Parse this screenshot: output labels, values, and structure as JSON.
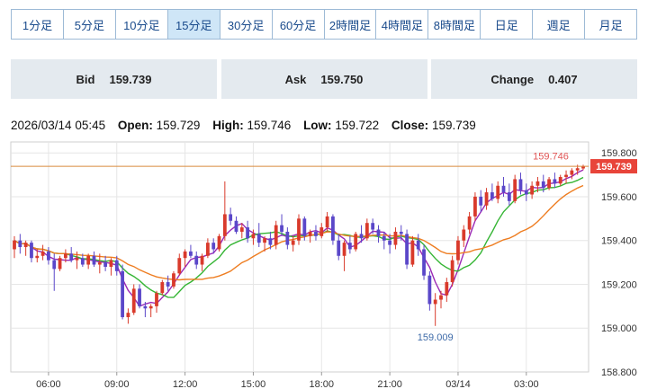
{
  "timeframe_tabs": [
    {
      "label": "1分足"
    },
    {
      "label": "5分足"
    },
    {
      "label": "10分足"
    },
    {
      "label": "15分足",
      "active": true
    },
    {
      "label": "30分足"
    },
    {
      "label": "60分足"
    },
    {
      "label": "2時間足"
    },
    {
      "label": "4時間足"
    },
    {
      "label": "8時間足"
    },
    {
      "label": "日足"
    },
    {
      "label": "週足"
    },
    {
      "label": "月足"
    }
  ],
  "quotes": {
    "bid_label": "Bid",
    "bid_value": "159.739",
    "ask_label": "Ask",
    "ask_value": "159.750",
    "change_label": "Change",
    "change_value": "0.407"
  },
  "ohlc": {
    "datetime": "2026/03/14 05:45",
    "open_label": "Open:",
    "open": "159.729",
    "high_label": "High:",
    "high": "159.746",
    "low_label": "Low:",
    "low": "159.722",
    "close_label": "Close:",
    "close": "159.739"
  },
  "colors": {
    "up": "#d93a2b",
    "down": "#5a47c9",
    "ma_short": "#9b29b5",
    "ma_mid": "#35b534",
    "ma_long": "#ee7d21",
    "last_price_line": "#d98a3c",
    "last_price_tag": "#e8443a",
    "high_annotation": "#e05555",
    "low_annotation": "#3d6aa8",
    "grid": "#e6e6e6",
    "axis_text": "#333333"
  },
  "chart_data": {
    "type": "candlestick",
    "y_range": [
      158.8,
      159.85
    ],
    "y_ticks": [
      "159.800",
      "159.600",
      "159.400",
      "159.200",
      "159.000",
      "158.800"
    ],
    "x_ticks": [
      "06:00",
      "09:00",
      "12:00",
      "15:00",
      "18:00",
      "21:00",
      "03/14",
      "03:00"
    ],
    "last_price": "159.739",
    "max_annotation": "159.746",
    "min_annotation": "159.009",
    "series": [
      {
        "name": "candles",
        "points": []
      }
    ],
    "ohlc": [
      [
        159.36,
        159.42,
        159.32,
        159.4
      ],
      [
        159.4,
        159.43,
        159.34,
        159.37
      ],
      [
        159.37,
        159.4,
        159.33,
        159.39
      ],
      [
        159.39,
        159.4,
        159.3,
        159.32
      ],
      [
        159.32,
        159.36,
        159.3,
        159.33
      ],
      [
        159.33,
        159.38,
        159.31,
        159.35
      ],
      [
        159.35,
        159.37,
        159.29,
        159.31
      ],
      [
        159.31,
        159.34,
        159.17,
        159.27
      ],
      [
        159.27,
        159.33,
        159.26,
        159.32
      ],
      [
        159.32,
        159.36,
        159.3,
        159.34
      ],
      [
        159.34,
        159.37,
        159.3,
        159.31
      ],
      [
        159.31,
        159.35,
        159.27,
        159.32
      ],
      [
        159.32,
        159.34,
        159.28,
        159.29
      ],
      [
        159.29,
        159.34,
        159.27,
        159.33
      ],
      [
        159.33,
        159.35,
        159.28,
        159.29
      ],
      [
        159.29,
        159.34,
        159.25,
        159.3
      ],
      [
        159.3,
        159.33,
        159.26,
        159.28
      ],
      [
        159.28,
        159.32,
        159.24,
        159.31
      ],
      [
        159.31,
        159.33,
        159.24,
        159.26
      ],
      [
        159.26,
        159.29,
        159.04,
        159.05
      ],
      [
        159.05,
        159.09,
        159.02,
        159.07
      ],
      [
        159.07,
        159.2,
        159.06,
        159.18
      ],
      [
        159.18,
        159.2,
        159.09,
        159.1
      ],
      [
        159.1,
        159.12,
        159.05,
        159.09
      ],
      [
        159.09,
        159.11,
        159.05,
        159.1
      ],
      [
        159.1,
        159.17,
        159.07,
        159.16
      ],
      [
        159.16,
        159.22,
        159.15,
        159.21
      ],
      [
        159.21,
        159.24,
        159.17,
        159.19
      ],
      [
        159.19,
        159.26,
        159.18,
        159.25
      ],
      [
        159.25,
        159.34,
        159.24,
        159.32
      ],
      [
        159.32,
        159.36,
        159.28,
        159.35
      ],
      [
        159.35,
        159.38,
        159.32,
        159.33
      ],
      [
        159.33,
        159.35,
        159.27,
        159.29
      ],
      [
        159.29,
        159.34,
        159.26,
        159.33
      ],
      [
        159.33,
        159.41,
        159.32,
        159.39
      ],
      [
        159.39,
        159.41,
        159.34,
        159.36
      ],
      [
        159.36,
        159.43,
        159.35,
        159.42
      ],
      [
        159.42,
        159.67,
        159.4,
        159.52
      ],
      [
        159.52,
        159.55,
        159.47,
        159.49
      ],
      [
        159.49,
        159.51,
        159.43,
        159.44
      ],
      [
        159.44,
        159.48,
        159.41,
        159.46
      ],
      [
        159.46,
        159.49,
        159.39,
        159.41
      ],
      [
        159.41,
        159.45,
        159.38,
        159.43
      ],
      [
        159.43,
        159.48,
        159.37,
        159.39
      ],
      [
        159.39,
        159.42,
        159.35,
        159.41
      ],
      [
        159.41,
        159.44,
        159.36,
        159.38
      ],
      [
        159.38,
        159.49,
        159.36,
        159.47
      ],
      [
        159.47,
        159.52,
        159.42,
        159.44
      ],
      [
        159.44,
        159.46,
        159.36,
        159.38
      ],
      [
        159.38,
        159.42,
        159.35,
        159.4
      ],
      [
        159.4,
        159.52,
        159.38,
        159.5
      ],
      [
        159.5,
        159.51,
        159.4,
        159.42
      ],
      [
        159.42,
        159.45,
        159.39,
        159.44
      ],
      [
        159.44,
        159.47,
        159.4,
        159.42
      ],
      [
        159.42,
        159.48,
        159.41,
        159.46
      ],
      [
        159.46,
        159.53,
        159.44,
        159.51
      ],
      [
        159.51,
        159.52,
        159.38,
        159.4
      ],
      [
        159.4,
        159.43,
        159.31,
        159.33
      ],
      [
        159.33,
        159.4,
        159.26,
        159.39
      ],
      [
        159.39,
        159.42,
        159.34,
        159.36
      ],
      [
        159.36,
        159.44,
        159.35,
        159.43
      ],
      [
        159.43,
        159.47,
        159.39,
        159.41
      ],
      [
        159.41,
        159.5,
        159.4,
        159.48
      ],
      [
        159.48,
        159.5,
        159.43,
        159.45
      ],
      [
        159.45,
        159.47,
        159.39,
        159.42
      ],
      [
        159.42,
        159.44,
        159.36,
        159.4
      ],
      [
        159.4,
        159.43,
        159.34,
        159.38
      ],
      [
        159.38,
        159.46,
        159.36,
        159.44
      ],
      [
        159.44,
        159.47,
        159.4,
        159.43
      ],
      [
        159.43,
        159.45,
        159.27,
        159.29
      ],
      [
        159.29,
        159.42,
        159.28,
        159.4
      ],
      [
        159.4,
        159.43,
        159.33,
        159.36
      ],
      [
        159.36,
        159.38,
        159.22,
        159.24
      ],
      [
        159.24,
        159.26,
        159.08,
        159.11
      ],
      [
        159.11,
        159.16,
        159.01,
        159.13
      ],
      [
        159.13,
        159.17,
        159.09,
        159.15
      ],
      [
        159.15,
        159.23,
        159.12,
        159.21
      ],
      [
        159.21,
        159.33,
        159.19,
        159.31
      ],
      [
        159.31,
        159.42,
        159.29,
        159.4
      ],
      [
        159.4,
        159.47,
        159.37,
        159.45
      ],
      [
        159.45,
        159.53,
        159.43,
        159.51
      ],
      [
        159.51,
        159.62,
        159.49,
        159.6
      ],
      [
        159.6,
        159.63,
        159.53,
        159.56
      ],
      [
        159.56,
        159.64,
        159.54,
        159.62
      ],
      [
        159.62,
        159.66,
        159.58,
        159.59
      ],
      [
        159.59,
        159.67,
        159.57,
        159.65
      ],
      [
        159.65,
        159.69,
        159.6,
        159.62
      ],
      [
        159.62,
        159.66,
        159.56,
        159.58
      ],
      [
        159.58,
        159.7,
        159.57,
        159.68
      ],
      [
        159.68,
        159.71,
        159.61,
        159.63
      ],
      [
        159.63,
        159.66,
        159.58,
        159.61
      ],
      [
        159.61,
        159.67,
        159.59,
        159.65
      ],
      [
        159.65,
        159.69,
        159.62,
        159.67
      ],
      [
        159.67,
        159.7,
        159.62,
        159.64
      ],
      [
        159.64,
        159.69,
        159.63,
        159.68
      ],
      [
        159.68,
        159.71,
        159.64,
        159.66
      ],
      [
        159.66,
        159.7,
        159.65,
        159.69
      ],
      [
        159.69,
        159.72,
        159.66,
        159.7
      ],
      [
        159.7,
        159.73,
        159.68,
        159.72
      ],
      [
        159.72,
        159.746,
        159.7,
        159.73
      ],
      [
        159.729,
        159.746,
        159.722,
        159.739
      ]
    ]
  }
}
